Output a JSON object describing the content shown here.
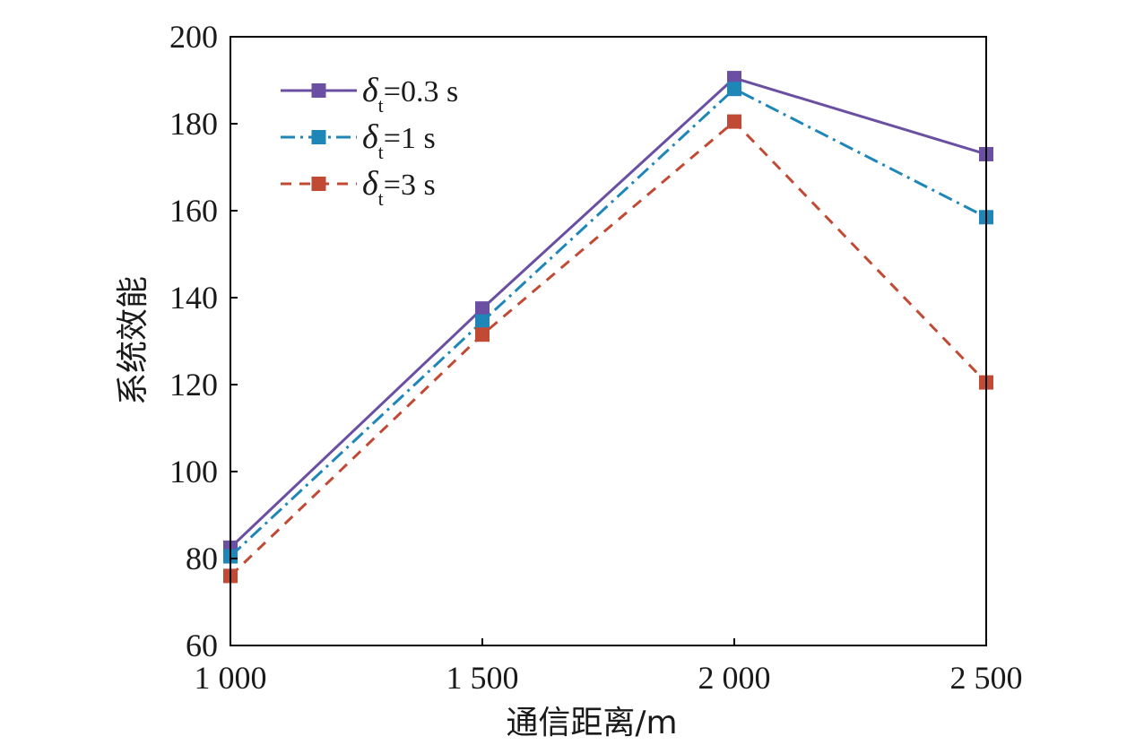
{
  "chart_data": {
    "type": "line",
    "title": "",
    "xlabel": "通信距离/m",
    "ylabel": "系统效能",
    "categories": [
      "1 000",
      "1 500",
      "2 000",
      "2 500"
    ],
    "x": [
      1000,
      1500,
      2000,
      2500
    ],
    "xlim": [
      1000,
      2500
    ],
    "ylim": [
      60,
      200
    ],
    "yticks": [
      60,
      80,
      100,
      120,
      140,
      160,
      180,
      200
    ],
    "ytick_labels": [
      "60",
      "80",
      "100",
      "120",
      "140",
      "160",
      "180",
      "200"
    ],
    "grid": false,
    "legend_position": "top-left",
    "series": [
      {
        "name": "δt=0.3 s",
        "legend_symbol": "δ",
        "legend_sub": "t",
        "legend_value": "=0.3 s",
        "values": [
          82.5,
          137.5,
          190.5,
          173
        ],
        "color": "#6b4fa2",
        "line_style": "solid",
        "marker": "square"
      },
      {
        "name": "δt=1 s",
        "legend_symbol": "δ",
        "legend_sub": "t",
        "legend_value": "=1 s",
        "values": [
          80.5,
          134.5,
          188,
          158.5
        ],
        "color": "#1f86b8",
        "line_style": "dashdot",
        "marker": "square"
      },
      {
        "name": "δt=3 s",
        "legend_symbol": "δ",
        "legend_sub": "t",
        "legend_value": "=3 s",
        "values": [
          76,
          131.5,
          180.5,
          120.5
        ],
        "color": "#c14a35",
        "line_style": "dashed",
        "marker": "square"
      }
    ]
  }
}
